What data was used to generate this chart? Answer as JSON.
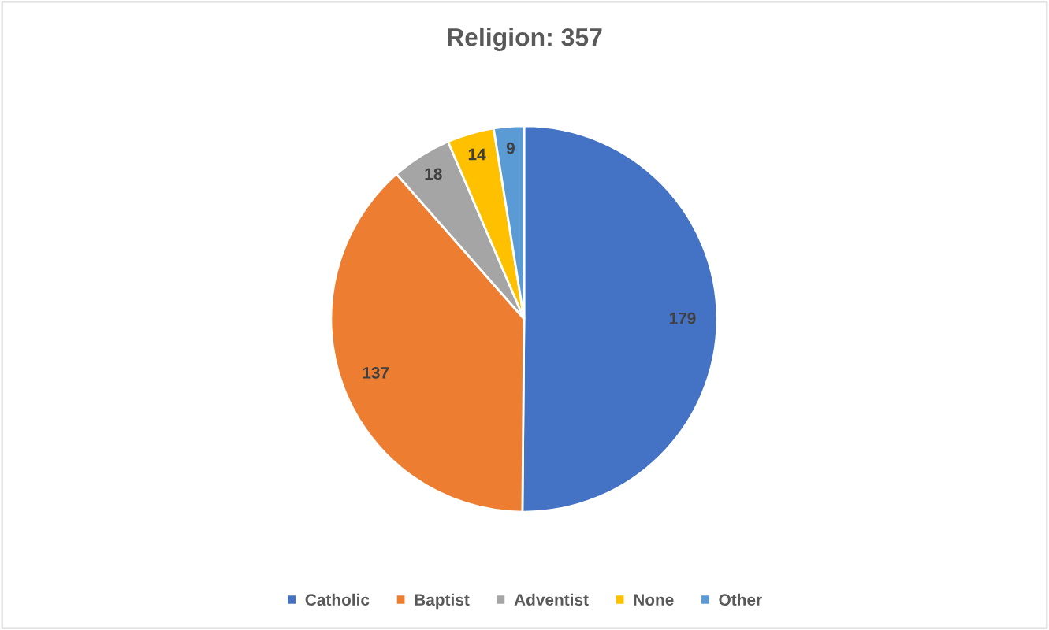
{
  "chart_data": {
    "type": "pie",
    "title": "Religion: 357",
    "categories": [
      "Catholic",
      "Baptist",
      "Adventist",
      "None",
      "Other"
    ],
    "values": [
      179,
      137,
      18,
      14,
      9
    ],
    "colors": [
      "#4472c4",
      "#ed7d31",
      "#a5a5a5",
      "#ffc000",
      "#5b9bd5"
    ],
    "data_labels": true,
    "legend": "bottom"
  }
}
